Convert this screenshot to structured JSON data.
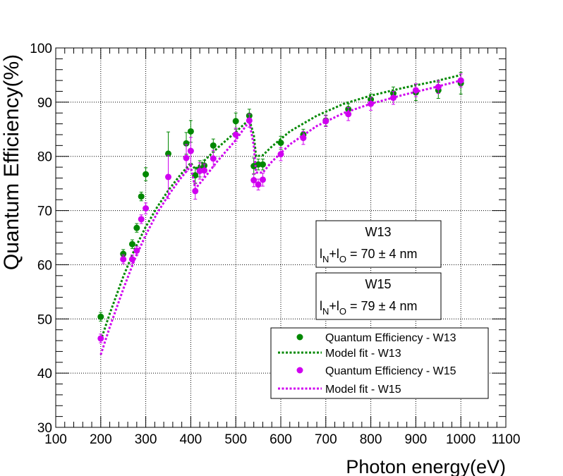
{
  "chart_data": {
    "type": "scatter",
    "xlabel": "Photon energy(eV)",
    "ylabel": "Quantum Efficiency(%)",
    "xlim": [
      100,
      1100
    ],
    "ylim": [
      30,
      100
    ],
    "xticks": [
      "100",
      "200",
      "300",
      "400",
      "500",
      "600",
      "700",
      "800",
      "900",
      "1000",
      "1100"
    ],
    "yticks": [
      "30",
      "40",
      "50",
      "60",
      "70",
      "80",
      "90",
      "100"
    ],
    "grid": true,
    "legend_position": "bottom-right",
    "legend": [
      "Quantum Efficiency - W13",
      "Model fit - W13",
      "Quantum Efficiency - W15",
      "Model fit - W15"
    ],
    "annotations": [
      {
        "title": "W13",
        "formula_parts": [
          "l",
          "N",
          "+l",
          "O",
          " = 70 ±  4 nm"
        ]
      },
      {
        "title": "W15",
        "formula_parts": [
          "l",
          "N",
          "+l",
          "O",
          " = 79 ±  4 nm"
        ]
      }
    ],
    "series": [
      {
        "name": "Quantum Efficiency - W13",
        "kind": "points",
        "color": "#008800",
        "x": [
          200,
          250,
          270,
          280,
          290,
          300,
          350,
          390,
          400,
          410,
          420,
          430,
          450,
          500,
          530,
          540,
          550,
          560,
          600,
          650,
          700,
          750,
          800,
          850,
          900,
          950,
          1000
        ],
        "y": [
          50.4,
          62.0,
          63.8,
          66.8,
          72.6,
          76.7,
          80.5,
          82.4,
          84.6,
          76.5,
          77.7,
          78.3,
          82.0,
          86.5,
          87.5,
          78.2,
          78.5,
          78.5,
          82.5,
          84.0,
          86.6,
          88.7,
          90.5,
          91.6,
          91.8,
          92.2,
          93.5
        ],
        "err": [
          0.8,
          0.8,
          0.8,
          0.8,
          0.8,
          1.2,
          4.0,
          2.0,
          2.0,
          1.5,
          1.5,
          1.0,
          1.2,
          1.5,
          1.2,
          1.5,
          1.0,
          1.0,
          1.2,
          1.0,
          1.0,
          1.0,
          1.0,
          1.2,
          1.5,
          1.5,
          2.0
        ]
      },
      {
        "name": "Model fit - W13",
        "kind": "line",
        "color": "#008800",
        "x": [
          200,
          220,
          250,
          275,
          300,
          325,
          350,
          375,
          400,
          410,
          430,
          460,
          500,
          530,
          540,
          545,
          560,
          580,
          620,
          680,
          740,
          800,
          870,
          940,
          1000
        ],
        "y": [
          46.0,
          51.0,
          57.8,
          62.8,
          67.0,
          70.6,
          73.7,
          76.4,
          78.8,
          77.6,
          79.2,
          81.6,
          84.5,
          86.8,
          84.0,
          80.0,
          80.2,
          81.8,
          84.6,
          87.5,
          89.7,
          91.2,
          92.6,
          93.8,
          95.0
        ]
      },
      {
        "name": "Quantum Efficiency - W15",
        "kind": "points",
        "color": "#d000f0",
        "x": [
          200,
          250,
          270,
          280,
          290,
          300,
          350,
          390,
          400,
          410,
          420,
          430,
          450,
          500,
          530,
          540,
          550,
          560,
          600,
          650,
          700,
          750,
          800,
          850,
          900,
          950,
          1000
        ],
        "y": [
          46.4,
          61.0,
          61.0,
          62.6,
          68.4,
          70.4,
          76.2,
          79.7,
          81.0,
          73.6,
          77.3,
          77.4,
          79.6,
          84.0,
          86.6,
          75.6,
          74.8,
          75.7,
          80.4,
          83.4,
          86.5,
          87.8,
          89.7,
          90.8,
          92.2,
          92.8,
          94.0
        ],
        "err": [
          0.8,
          0.8,
          0.8,
          0.8,
          0.8,
          1.0,
          4.0,
          2.5,
          2.5,
          1.5,
          1.5,
          1.2,
          1.5,
          1.2,
          1.2,
          1.2,
          1.0,
          1.2,
          1.2,
          1.2,
          1.0,
          1.2,
          1.2,
          1.2,
          1.2,
          1.2,
          1.2
        ]
      },
      {
        "name": "Model fit - W15",
        "kind": "line",
        "color": "#d000f0",
        "x": [
          200,
          220,
          250,
          275,
          300,
          325,
          350,
          375,
          400,
          410,
          430,
          460,
          500,
          530,
          540,
          545,
          560,
          580,
          620,
          680,
          740,
          800,
          870,
          940,
          1000
        ],
        "y": [
          43.4,
          48.5,
          55.5,
          60.9,
          65.5,
          69.5,
          72.8,
          75.7,
          78.2,
          74.0,
          76.0,
          79.2,
          83.0,
          86.5,
          82.0,
          77.0,
          77.0,
          79.0,
          82.2,
          85.6,
          88.0,
          89.7,
          91.3,
          92.7,
          94.0
        ]
      }
    ]
  }
}
